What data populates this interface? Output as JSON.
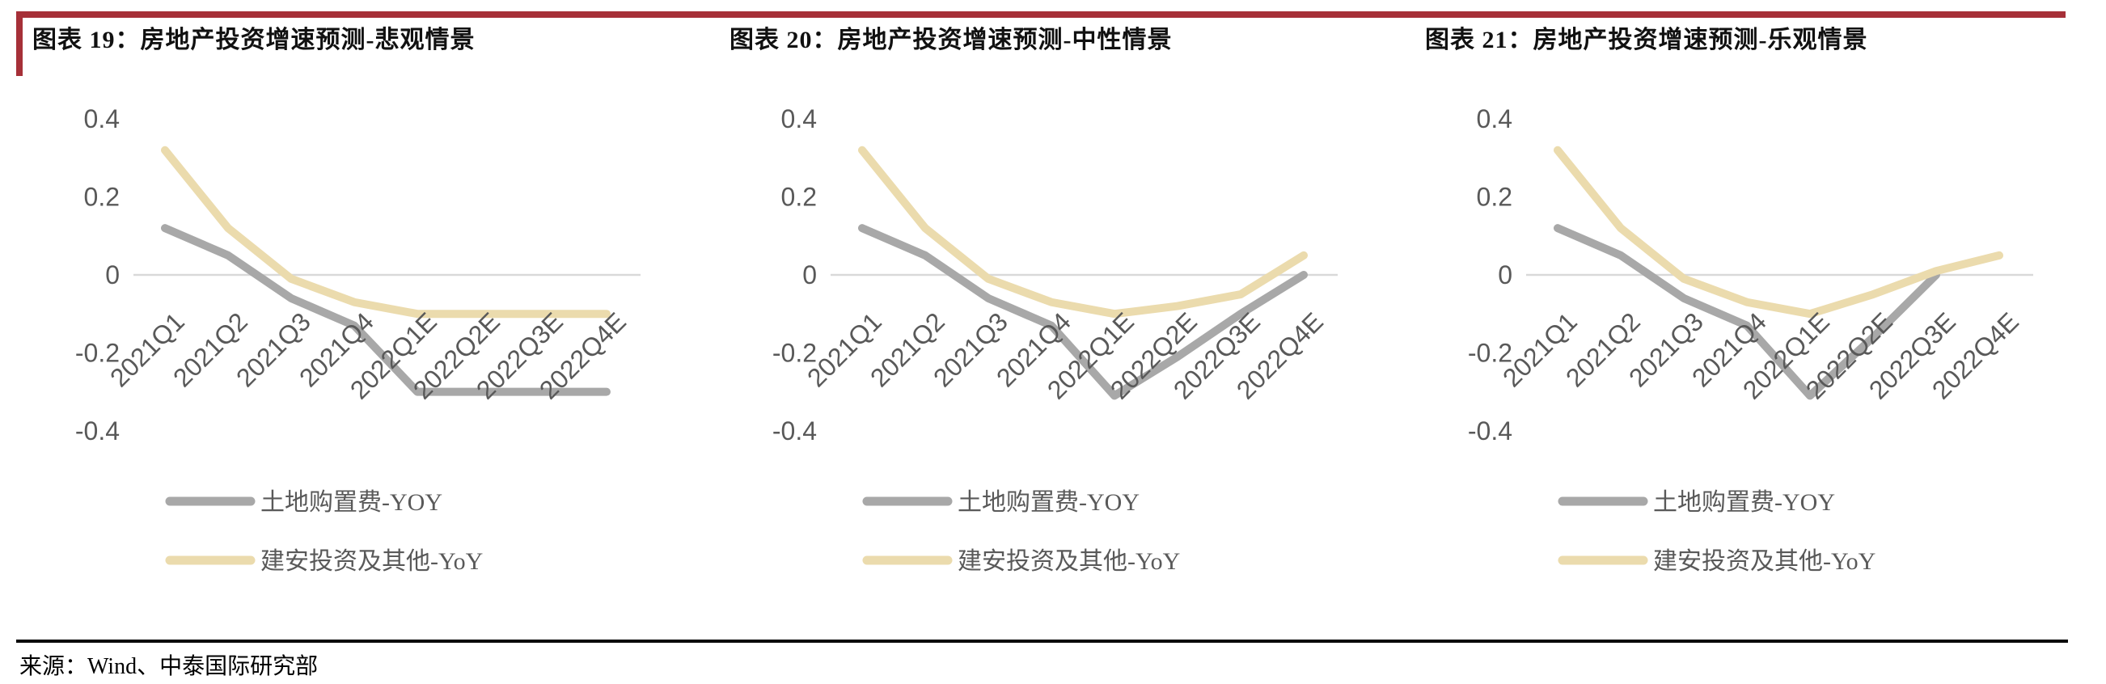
{
  "page": {
    "colors": {
      "accent_red": "#A63038",
      "axis_label": "#595959",
      "gridline": "#D9D9D9",
      "series_gray": "#A8A8A8",
      "series_tan": "#EBDBAD"
    },
    "footer": {
      "source_text": "来源：Wind、中泰国际研究部"
    }
  },
  "chart_data": [
    {
      "type": "line",
      "title": "图表 19：房地产投资增速预测-悲观情景",
      "categories": [
        "2021Q1",
        "2021Q2",
        "2021Q3",
        "2021Q4",
        "2022Q1E",
        "2022Q2E",
        "2022Q3E",
        "2022Q4E"
      ],
      "series": [
        {
          "name": "土地购置费-YOY",
          "color": "#A8A8A8",
          "values": [
            0.12,
            0.05,
            -0.06,
            -0.13,
            -0.3,
            -0.3,
            -0.3,
            -0.3
          ]
        },
        {
          "name": "建安投资及其他-YoY",
          "color": "#EBDBAD",
          "values": [
            0.32,
            0.12,
            -0.01,
            -0.07,
            -0.1,
            -0.1,
            -0.1,
            -0.1
          ]
        }
      ],
      "ylim": [
        -0.4,
        0.4
      ],
      "yticks": [
        0.4,
        0.2,
        0,
        -0.2,
        -0.4
      ],
      "grid": "zero-baseline-only",
      "legend_position": "bottom-left"
    },
    {
      "type": "line",
      "title": "图表 20：房地产投资增速预测-中性情景",
      "categories": [
        "2021Q1",
        "2021Q2",
        "2021Q3",
        "2021Q4",
        "2022Q1E",
        "2022Q2E",
        "2022Q3E",
        "2022Q4E"
      ],
      "series": [
        {
          "name": "土地购置费-YOY",
          "color": "#A8A8A8",
          "values": [
            0.12,
            0.05,
            -0.06,
            -0.13,
            -0.31,
            -0.21,
            -0.1,
            0.0
          ]
        },
        {
          "name": "建安投资及其他-YoY",
          "color": "#EBDBAD",
          "values": [
            0.32,
            0.12,
            -0.01,
            -0.07,
            -0.1,
            -0.08,
            -0.05,
            0.05
          ]
        }
      ],
      "ylim": [
        -0.4,
        0.4
      ],
      "yticks": [
        0.4,
        0.2,
        0,
        -0.2,
        -0.4
      ],
      "grid": "zero-baseline-only",
      "legend_position": "bottom-left"
    },
    {
      "type": "line",
      "title": "图表 21：房地产投资增速预测-乐观情景",
      "categories": [
        "2021Q1",
        "2021Q2",
        "2021Q3",
        "2021Q4",
        "2022Q1E",
        "2022Q2E",
        "2022Q3E",
        "2022Q4E"
      ],
      "series": [
        {
          "name": "土地购置费-YOY",
          "color": "#A8A8A8",
          "values": [
            0.12,
            0.05,
            -0.06,
            -0.13,
            -0.31,
            -0.16,
            0.0,
            null
          ]
        },
        {
          "name": "建安投资及其他-YoY",
          "color": "#EBDBAD",
          "values": [
            0.32,
            0.12,
            -0.01,
            -0.07,
            -0.1,
            -0.05,
            0.01,
            0.05
          ]
        }
      ],
      "ylim": [
        -0.4,
        0.4
      ],
      "yticks": [
        0.4,
        0.2,
        0,
        -0.2,
        -0.4
      ],
      "grid": "zero-baseline-only",
      "legend_position": "bottom-left"
    }
  ]
}
